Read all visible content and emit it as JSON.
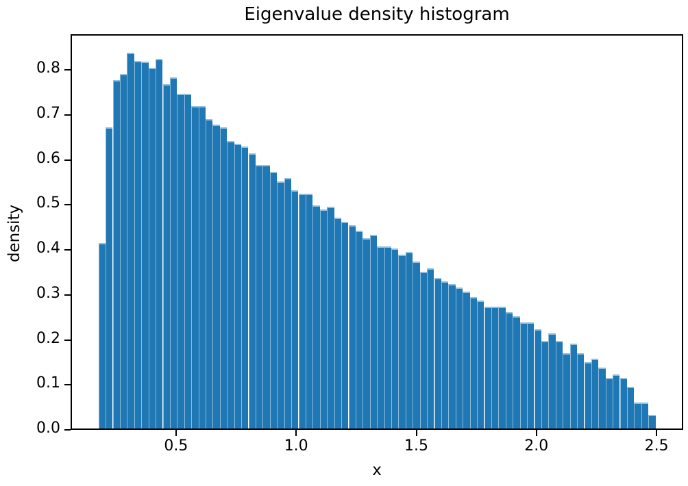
{
  "figure": {
    "title": "Eigenvalue density histogram",
    "xlabel": "x",
    "ylabel": "density"
  },
  "chart_data": {
    "type": "bar",
    "subtype": "histogram",
    "title": "Eigenvalue density histogram",
    "xlabel": "x",
    "ylabel": "density",
    "grid": false,
    "legend": null,
    "bar_color": "#1f77b4",
    "bar_edge_highlight": "#a0c8e4",
    "xlim": [
      0.061,
      2.611
    ],
    "ylim": [
      0.0,
      0.879
    ],
    "x_ticks": [
      0.5,
      1.0,
      1.5,
      2.0,
      2.5
    ],
    "x_tick_labels": [
      "0.5",
      "1.0",
      "1.5",
      "2.0",
      "2.5"
    ],
    "y_ticks": [
      0.0,
      0.1,
      0.2,
      0.3,
      0.4,
      0.5,
      0.6,
      0.7,
      0.8
    ],
    "y_tick_labels": [
      "0.0",
      "0.1",
      "0.2",
      "0.3",
      "0.4",
      "0.5",
      "0.6",
      "0.7",
      "0.8"
    ],
    "bins_start": 0.177,
    "bin_width": 0.029731,
    "values": [
      0.415,
      0.672,
      0.777,
      0.791,
      0.838,
      0.82,
      0.818,
      0.805,
      0.824,
      0.768,
      0.783,
      0.747,
      0.747,
      0.719,
      0.719,
      0.691,
      0.678,
      0.672,
      0.642,
      0.635,
      0.629,
      0.614,
      0.588,
      0.588,
      0.573,
      0.552,
      0.56,
      0.532,
      0.525,
      0.524,
      0.499,
      0.49,
      0.496,
      0.471,
      0.462,
      0.455,
      0.442,
      0.426,
      0.434,
      0.408,
      0.408,
      0.403,
      0.389,
      0.395,
      0.374,
      0.351,
      0.359,
      0.337,
      0.33,
      0.324,
      0.317,
      0.307,
      0.295,
      0.288,
      0.274,
      0.274,
      0.274,
      0.261,
      0.253,
      0.239,
      0.239,
      0.224,
      0.198,
      0.214,
      0.198,
      0.171,
      0.192,
      0.171,
      0.151,
      0.158,
      0.138,
      0.116,
      0.124,
      0.116,
      0.096,
      0.061,
      0.061,
      0.034
    ]
  }
}
